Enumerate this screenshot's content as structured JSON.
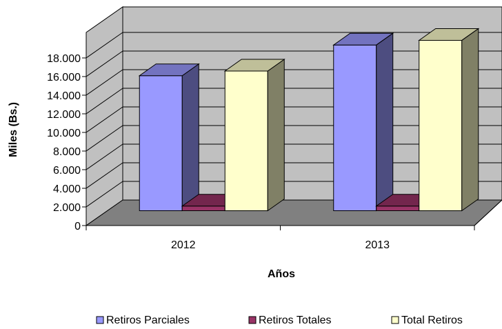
{
  "chart_data": {
    "type": "bar",
    "style": "3d-clustered-column",
    "categories": [
      "2012",
      "2013"
    ],
    "series": [
      {
        "name": "Retiros Parciales",
        "values": [
          14500,
          17800
        ],
        "color": "#9999FF"
      },
      {
        "name": "Retiros Totales",
        "values": [
          500,
          500
        ],
        "color": "#993366"
      },
      {
        "name": "Total Retiros",
        "values": [
          15000,
          18300
        ],
        "color": "#FFFFCC"
      }
    ],
    "y_ticks": [
      "0",
      "2.000",
      "4.000",
      "6.000",
      "8.000",
      "10.000",
      "12.000",
      "14.000",
      "16.000",
      "18.000"
    ],
    "xlabel": "Años",
    "ylabel": "Miles (Bs.)",
    "ylim": [
      0,
      18000
    ],
    "grid": true,
    "legend_position": "bottom",
    "colors": {
      "wall": "#C0C0C0",
      "floor": "#808080",
      "gridline": "#000000"
    }
  }
}
